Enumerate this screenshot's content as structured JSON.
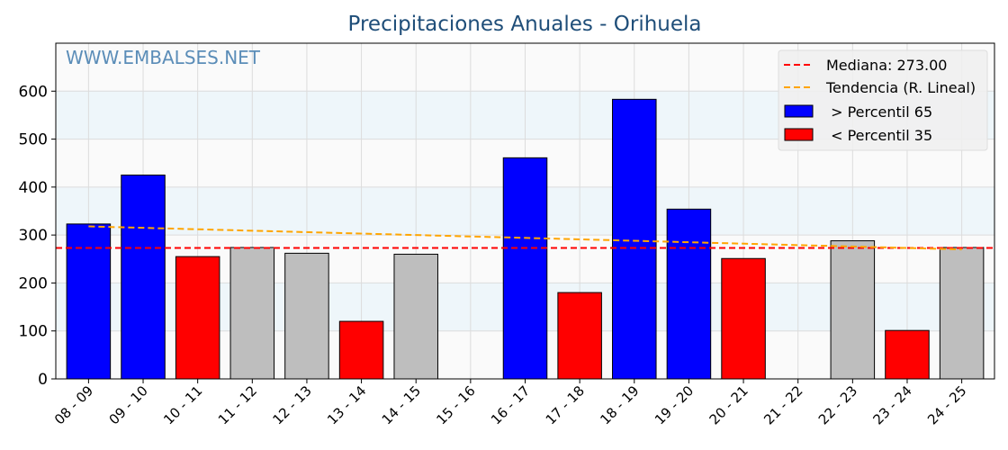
{
  "chart_data": {
    "type": "bar",
    "title": "Precipitaciones Anuales - Orihuela",
    "watermark": "WWW.EMBALSES.NET",
    "xlabel": "",
    "ylabel": "",
    "categories": [
      "08 - 09",
      "09 - 10",
      "10 - 11",
      "11 - 12",
      "12 - 13",
      "13 - 14",
      "14 - 15",
      "15 - 16",
      "16 - 17",
      "17 - 18",
      "18 - 19",
      "19 - 20",
      "20 - 21",
      "21 - 22",
      "22 - 23",
      "23 - 24",
      "24 - 25"
    ],
    "values": [
      323,
      425,
      255,
      274,
      262,
      120,
      260,
      0,
      461,
      180,
      583,
      354,
      251,
      0,
      288,
      101,
      274
    ],
    "bar_classes": [
      "high",
      "high",
      "low",
      "mid",
      "mid",
      "low",
      "mid",
      "none",
      "high",
      "low",
      "high",
      "high",
      "low",
      "none",
      "mid",
      "low",
      "mid"
    ],
    "class_colors": {
      "high": "#0000ff",
      "low": "#ff0000",
      "mid": "#bebebe"
    },
    "ylim": [
      0,
      700
    ],
    "yticks": [
      0,
      100,
      200,
      300,
      400,
      500,
      600
    ],
    "median": 273.0,
    "trend": {
      "start": 318,
      "end": 270
    },
    "grid": true,
    "legend_position": "top-right",
    "legend": {
      "median_label": "Mediana: 273.00",
      "trend_label": "Tendencia (R. Lineal)",
      "high_label": " > Percentil 65",
      "low_label": " < Percentil 35"
    },
    "colors": {
      "median": "#ff0000",
      "trend": "#ffa500",
      "band": "#eef6fa",
      "plot_bg": "#fafafa",
      "title": "#1f4e79",
      "watermark": "#5b8db8"
    }
  }
}
